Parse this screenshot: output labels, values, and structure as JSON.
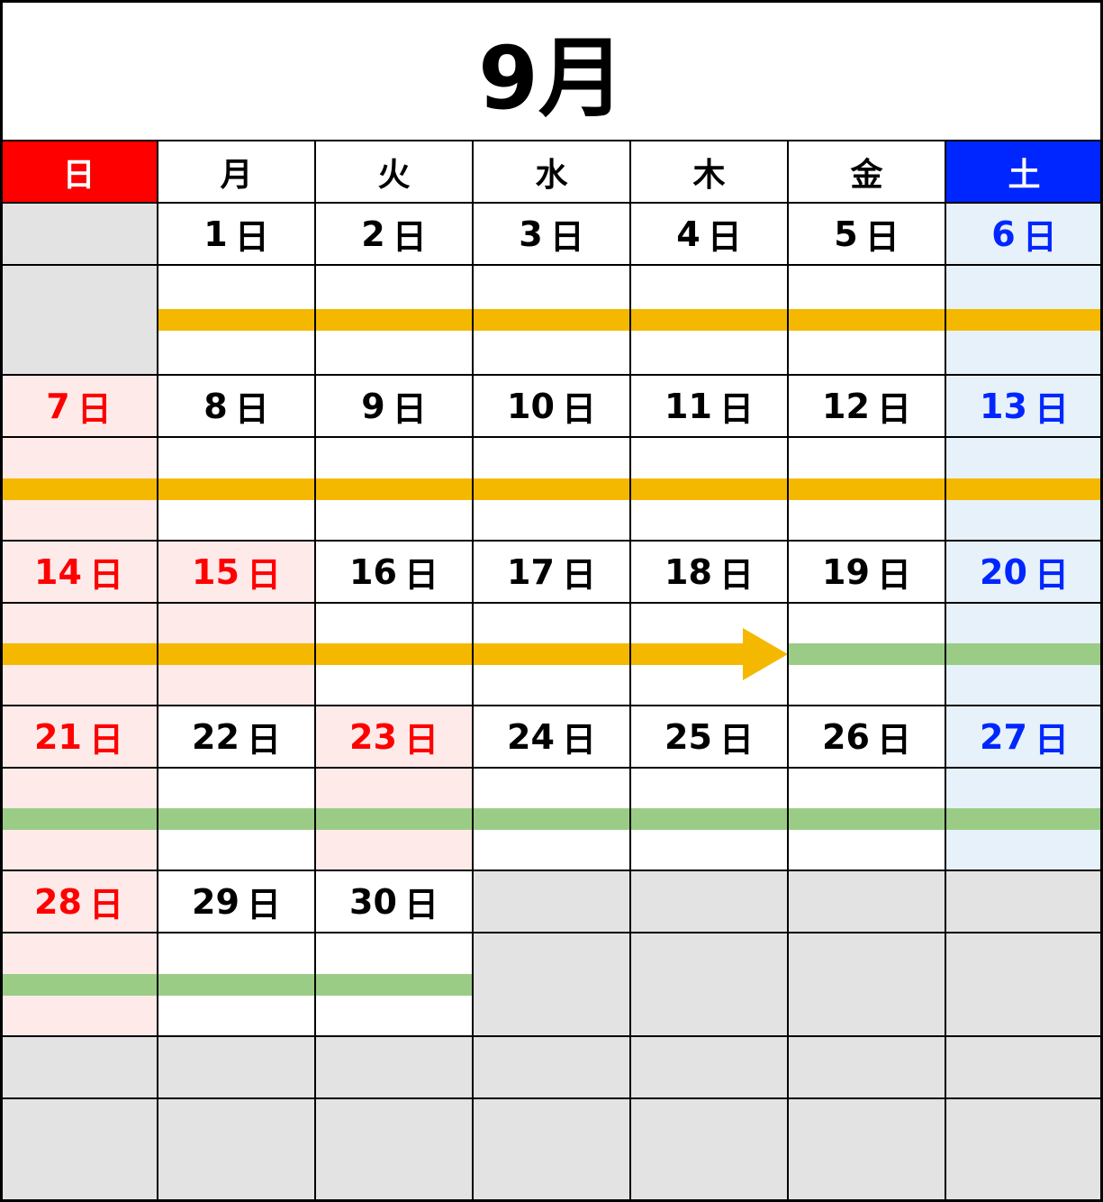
{
  "title": "9月",
  "weekdays": [
    "日",
    "月",
    "火",
    "水",
    "木",
    "金",
    "土"
  ],
  "day_suffix": "日",
  "holidays": [
    15,
    23
  ],
  "first_weekday": 1,
  "days_in_month": 30,
  "weeks_shown": 6,
  "colors": {
    "sunday_header": "#ff0000",
    "saturday_header": "#0026ff",
    "sunday_text": "#ff0000",
    "saturday_text": "#0026ff",
    "holiday_bg": "#ffeaea",
    "saturday_bg": "#e7f1fa",
    "empty_bg": "#e3e3e3",
    "yellow_bar": "#f5b800",
    "green_bar": "#9bcc86"
  },
  "bars": [
    {
      "start": 1,
      "end": 18,
      "color": "#f5b800",
      "arrow": true
    },
    {
      "start": 19,
      "end": 30,
      "color": "#9bcc86",
      "arrow": false
    }
  ]
}
